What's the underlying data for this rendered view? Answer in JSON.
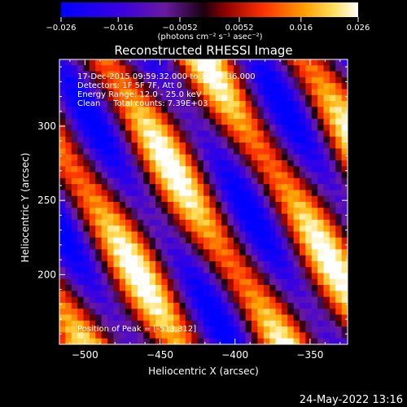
{
  "chart_data": {
    "type": "heatmap",
    "title": "Reconstructed RHESSI Image",
    "xlabel": "Heliocentric X (arcsec)",
    "ylabel": "Heliocentric Y (arcsec)",
    "xlim": [
      -517,
      -325
    ],
    "ylim": [
      153,
      345
    ],
    "x_ticks": [
      -500,
      -450,
      -400,
      -350
    ],
    "y_ticks": [
      200,
      250,
      300
    ],
    "x_tick_labels": [
      "−500",
      "−450",
      "−400",
      "−350"
    ],
    "y_tick_labels": [
      "200",
      "250",
      "300"
    ],
    "colorbar": {
      "range": [
        -0.026,
        0.026
      ],
      "ticks": [
        -0.026,
        -0.016,
        -0.0052,
        0.0052,
        0.016,
        0.026
      ],
      "tick_labels": [
        "−0.026",
        "−0.016",
        "−0.0052",
        "0.0052",
        "0.016",
        "0.026"
      ],
      "units_label": "(photons cm⁻² s⁻¹ asec⁻²)",
      "colormap": "red-temperature"
    },
    "annotations": [
      "17-Dec-2015 09:59:32.000 to 10:04:36.000",
      "Detectors: 1F 5F 7F, Att 0",
      "Energy Range: 12.0 - 25.0 keV",
      "Clean     Total counts: 7.39E+03"
    ],
    "peak_label": "Position of Peak = [-513,312]",
    "peak": [
      -513,
      312
    ],
    "timestamp": "24-May-2022 13:16"
  }
}
